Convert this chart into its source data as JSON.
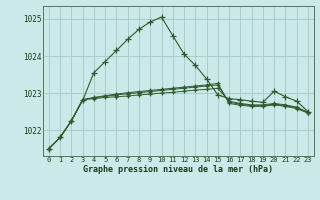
{
  "xlabel": "Graphe pression niveau de la mer (hPa)",
  "bg_color": "#cce9e9",
  "grid_color": "#a0c8c8",
  "line_color": "#2d5a2d",
  "ylim_min": 1021.3,
  "ylim_max": 1025.35,
  "yticks": [
    1022,
    1023,
    1024,
    1025
  ],
  "xticks": [
    0,
    1,
    2,
    3,
    4,
    5,
    6,
    7,
    8,
    9,
    10,
    11,
    12,
    13,
    14,
    15,
    16,
    17,
    18,
    19,
    20,
    21,
    22,
    23
  ],
  "series1": [
    1021.5,
    1021.8,
    1022.25,
    1022.8,
    1023.55,
    1023.85,
    1024.15,
    1024.45,
    1024.72,
    1024.92,
    1025.05,
    1024.55,
    1024.05,
    1023.75,
    1023.38,
    1022.95,
    1022.85,
    1022.82,
    1022.78,
    1022.75,
    1023.05,
    1022.9,
    1022.78,
    1022.5
  ],
  "series2": [
    1021.5,
    1021.8,
    1022.25,
    1022.82,
    1022.85,
    1022.88,
    1022.9,
    1022.92,
    1022.95,
    1022.97,
    1023.0,
    1023.02,
    1023.05,
    1023.08,
    1023.1,
    1023.13,
    1022.78,
    1022.72,
    1022.68,
    1022.68,
    1022.72,
    1022.68,
    1022.62,
    1022.48
  ],
  "series3": [
    1021.5,
    1021.8,
    1022.25,
    1022.82,
    1022.87,
    1022.91,
    1022.95,
    1022.98,
    1023.01,
    1023.04,
    1023.07,
    1023.1,
    1023.13,
    1023.16,
    1023.19,
    1023.22,
    1022.75,
    1022.7,
    1022.66,
    1022.66,
    1022.7,
    1022.66,
    1022.6,
    1022.47
  ],
  "series4": [
    1021.5,
    1021.8,
    1022.25,
    1022.82,
    1022.88,
    1022.93,
    1022.97,
    1023.01,
    1023.04,
    1023.07,
    1023.1,
    1023.13,
    1023.16,
    1023.19,
    1023.22,
    1023.26,
    1022.72,
    1022.67,
    1022.64,
    1022.64,
    1022.68,
    1022.64,
    1022.58,
    1022.46
  ]
}
